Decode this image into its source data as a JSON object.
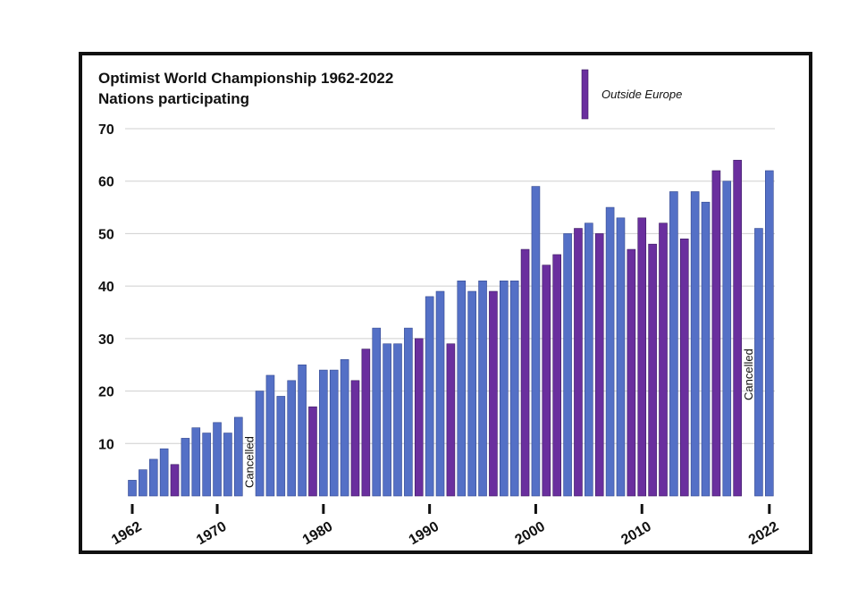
{
  "chart_data": {
    "type": "bar",
    "title": "Optimist World Championship 1962-2022",
    "subtitle": "Nations participating",
    "xlabel": "",
    "ylabel": "",
    "ylim": [
      0,
      70
    ],
    "yticks": [
      10,
      20,
      30,
      40,
      50,
      60,
      70
    ],
    "xticks": [
      "1962",
      "1970",
      "1980",
      "1990",
      "2000",
      "2010",
      "2022"
    ],
    "grid": true,
    "legend": {
      "position": "top-right",
      "label": "Outside Europe"
    },
    "colors": {
      "europe": "#5470c6",
      "outside_europe": "#6a2f9e"
    },
    "cancelled_label": "Cancelled",
    "cancelled_years": [
      1973,
      2020
    ],
    "years": [
      1962,
      1963,
      1964,
      1965,
      1966,
      1967,
      1968,
      1969,
      1970,
      1971,
      1972,
      1974,
      1975,
      1976,
      1977,
      1978,
      1979,
      1980,
      1981,
      1982,
      1983,
      1984,
      1985,
      1986,
      1987,
      1988,
      1989,
      1990,
      1991,
      1992,
      1993,
      1994,
      1995,
      1996,
      1997,
      1998,
      1999,
      2000,
      2001,
      2002,
      2003,
      2004,
      2005,
      2006,
      2007,
      2008,
      2009,
      2010,
      2011,
      2012,
      2013,
      2014,
      2015,
      2016,
      2017,
      2018,
      2019,
      2021,
      2022
    ],
    "values": [
      3,
      5,
      7,
      9,
      6,
      11,
      13,
      12,
      14,
      12,
      15,
      20,
      23,
      19,
      22,
      25,
      17,
      24,
      24,
      26,
      22,
      28,
      32,
      29,
      29,
      32,
      30,
      38,
      39,
      29,
      41,
      39,
      41,
      39,
      41,
      41,
      47,
      59,
      44,
      46,
      50,
      51,
      52,
      50,
      55,
      53,
      47,
      53,
      48,
      52,
      58,
      49,
      58,
      56,
      62,
      60,
      64,
      51,
      62
    ],
    "outside_europe_years": [
      1966,
      1979,
      1983,
      1984,
      1989,
      1992,
      1996,
      1999,
      2001,
      2002,
      2004,
      2006,
      2009,
      2010,
      2011,
      2012,
      2014,
      2017,
      2019
    ]
  }
}
